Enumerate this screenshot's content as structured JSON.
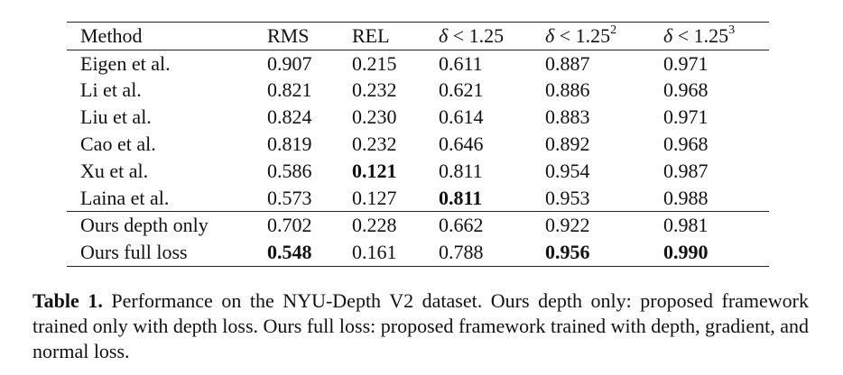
{
  "table": {
    "columns": [
      {
        "key": "method",
        "label": "Method"
      },
      {
        "key": "rms",
        "label": "RMS"
      },
      {
        "key": "rel",
        "label": "REL"
      },
      {
        "key": "d1",
        "symbol": "δ",
        "label": "< 1.25",
        "sup": ""
      },
      {
        "key": "d2",
        "symbol": "δ",
        "label": "< 1.25",
        "sup": "2"
      },
      {
        "key": "d3",
        "symbol": "δ",
        "label": "< 1.25",
        "sup": "3"
      }
    ],
    "group1": [
      {
        "method": "Eigen et al.",
        "rms": "0.907",
        "rel": "0.215",
        "d1": "0.611",
        "d2": "0.887",
        "d3": "0.971",
        "bold": []
      },
      {
        "method": "Li et al.",
        "rms": "0.821",
        "rel": "0.232",
        "d1": "0.621",
        "d2": "0.886",
        "d3": "0.968",
        "bold": []
      },
      {
        "method": "Liu et al.",
        "rms": "0.824",
        "rel": "0.230",
        "d1": "0.614",
        "d2": "0.883",
        "d3": "0.971",
        "bold": []
      },
      {
        "method": "Cao et al.",
        "rms": "0.819",
        "rel": "0.232",
        "d1": "0.646",
        "d2": "0.892",
        "d3": "0.968",
        "bold": []
      },
      {
        "method": "Xu et al.",
        "rms": "0.586",
        "rel": "0.121",
        "d1": "0.811",
        "d2": "0.954",
        "d3": "0.987",
        "bold": [
          "rel"
        ]
      },
      {
        "method": "Laina et al.",
        "rms": "0.573",
        "rel": "0.127",
        "d1": "0.811",
        "d2": "0.953",
        "d3": "0.988",
        "bold": [
          "d1"
        ]
      }
    ],
    "group2": [
      {
        "method": "Ours depth only",
        "rms": "0.702",
        "rel": "0.228",
        "d1": "0.662",
        "d2": "0.922",
        "d3": "0.981",
        "bold": []
      },
      {
        "method": "Ours full loss",
        "rms": "0.548",
        "rel": "0.161",
        "d1": "0.788",
        "d2": "0.956",
        "d3": "0.990",
        "bold": [
          "rms",
          "d2",
          "d3"
        ]
      }
    ]
  },
  "caption": {
    "label": "Table 1.",
    "text": "Performance on the NYU-Depth V2 dataset. Ours depth only: proposed framework trained only with depth loss. Ours full loss: proposed framework trained with depth, gradient, and normal loss."
  }
}
